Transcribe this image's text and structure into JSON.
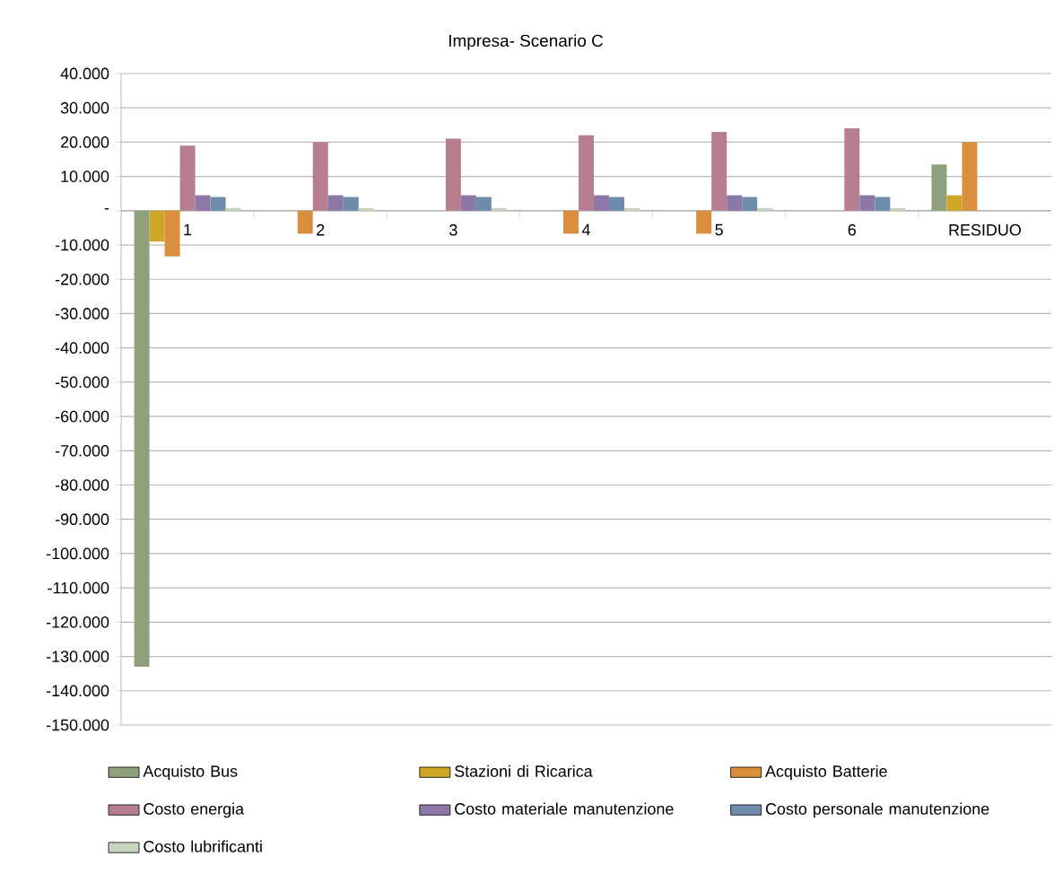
{
  "chart_data": {
    "type": "bar",
    "title": "Impresa- Scenario C",
    "categories": [
      "1",
      "2",
      "3",
      "4",
      "5",
      "6",
      "RESIDUO"
    ],
    "series": [
      {
        "name": "Acquisto Bus",
        "color": "#8fa07c",
        "values": [
          -133000,
          null,
          null,
          null,
          null,
          null,
          13500
        ]
      },
      {
        "name": "Stazioni di Ricarica",
        "color": "#cea726",
        "values": [
          -9000,
          null,
          null,
          null,
          null,
          null,
          4500
        ]
      },
      {
        "name": "Acquisto Batterie",
        "color": "#d98f3e",
        "values": [
          -13300,
          -6700,
          null,
          -6700,
          -6700,
          null,
          20000
        ]
      },
      {
        "name": "Costo energia",
        "color": "#b77e90",
        "values": [
          19000,
          20000,
          21000,
          22000,
          23000,
          24000,
          null
        ]
      },
      {
        "name": "Costo materiale manutenzione",
        "color": "#8b78a9",
        "values": [
          4500,
          4500,
          4500,
          4500,
          4500,
          4500,
          null
        ]
      },
      {
        "name": "Costo personale manutenzione",
        "color": "#6f8bab",
        "values": [
          4000,
          4000,
          4000,
          4000,
          4000,
          4000,
          null
        ]
      },
      {
        "name": "Costo lubrificanti",
        "color": "#c8d4bf",
        "values": [
          800,
          800,
          800,
          800,
          800,
          800,
          null
        ]
      }
    ],
    "ylim": [
      -150000,
      40000
    ],
    "yticks": [
      {
        "value": -150000,
        "label": "-150.000"
      },
      {
        "value": -140000,
        "label": "-140.000"
      },
      {
        "value": -130000,
        "label": "-130.000"
      },
      {
        "value": -120000,
        "label": "-120.000"
      },
      {
        "value": -110000,
        "label": "-110.000"
      },
      {
        "value": -100000,
        "label": "-100.000"
      },
      {
        "value": -90000,
        "label": "-90.000"
      },
      {
        "value": -80000,
        "label": "-80.000"
      },
      {
        "value": -70000,
        "label": "-70.000"
      },
      {
        "value": -60000,
        "label": "-60.000"
      },
      {
        "value": -50000,
        "label": "-50.000"
      },
      {
        "value": -40000,
        "label": "-40.000"
      },
      {
        "value": -30000,
        "label": "-30.000"
      },
      {
        "value": -20000,
        "label": "-20.000"
      },
      {
        "value": -10000,
        "label": "-10.000"
      },
      {
        "value": 0,
        "label": "-"
      },
      {
        "value": 10000,
        "label": "10.000"
      },
      {
        "value": 20000,
        "label": "20.000"
      },
      {
        "value": 30000,
        "label": "30.000"
      },
      {
        "value": 40000,
        "label": "40.000"
      }
    ],
    "grid": "y",
    "legend": "bottom"
  }
}
